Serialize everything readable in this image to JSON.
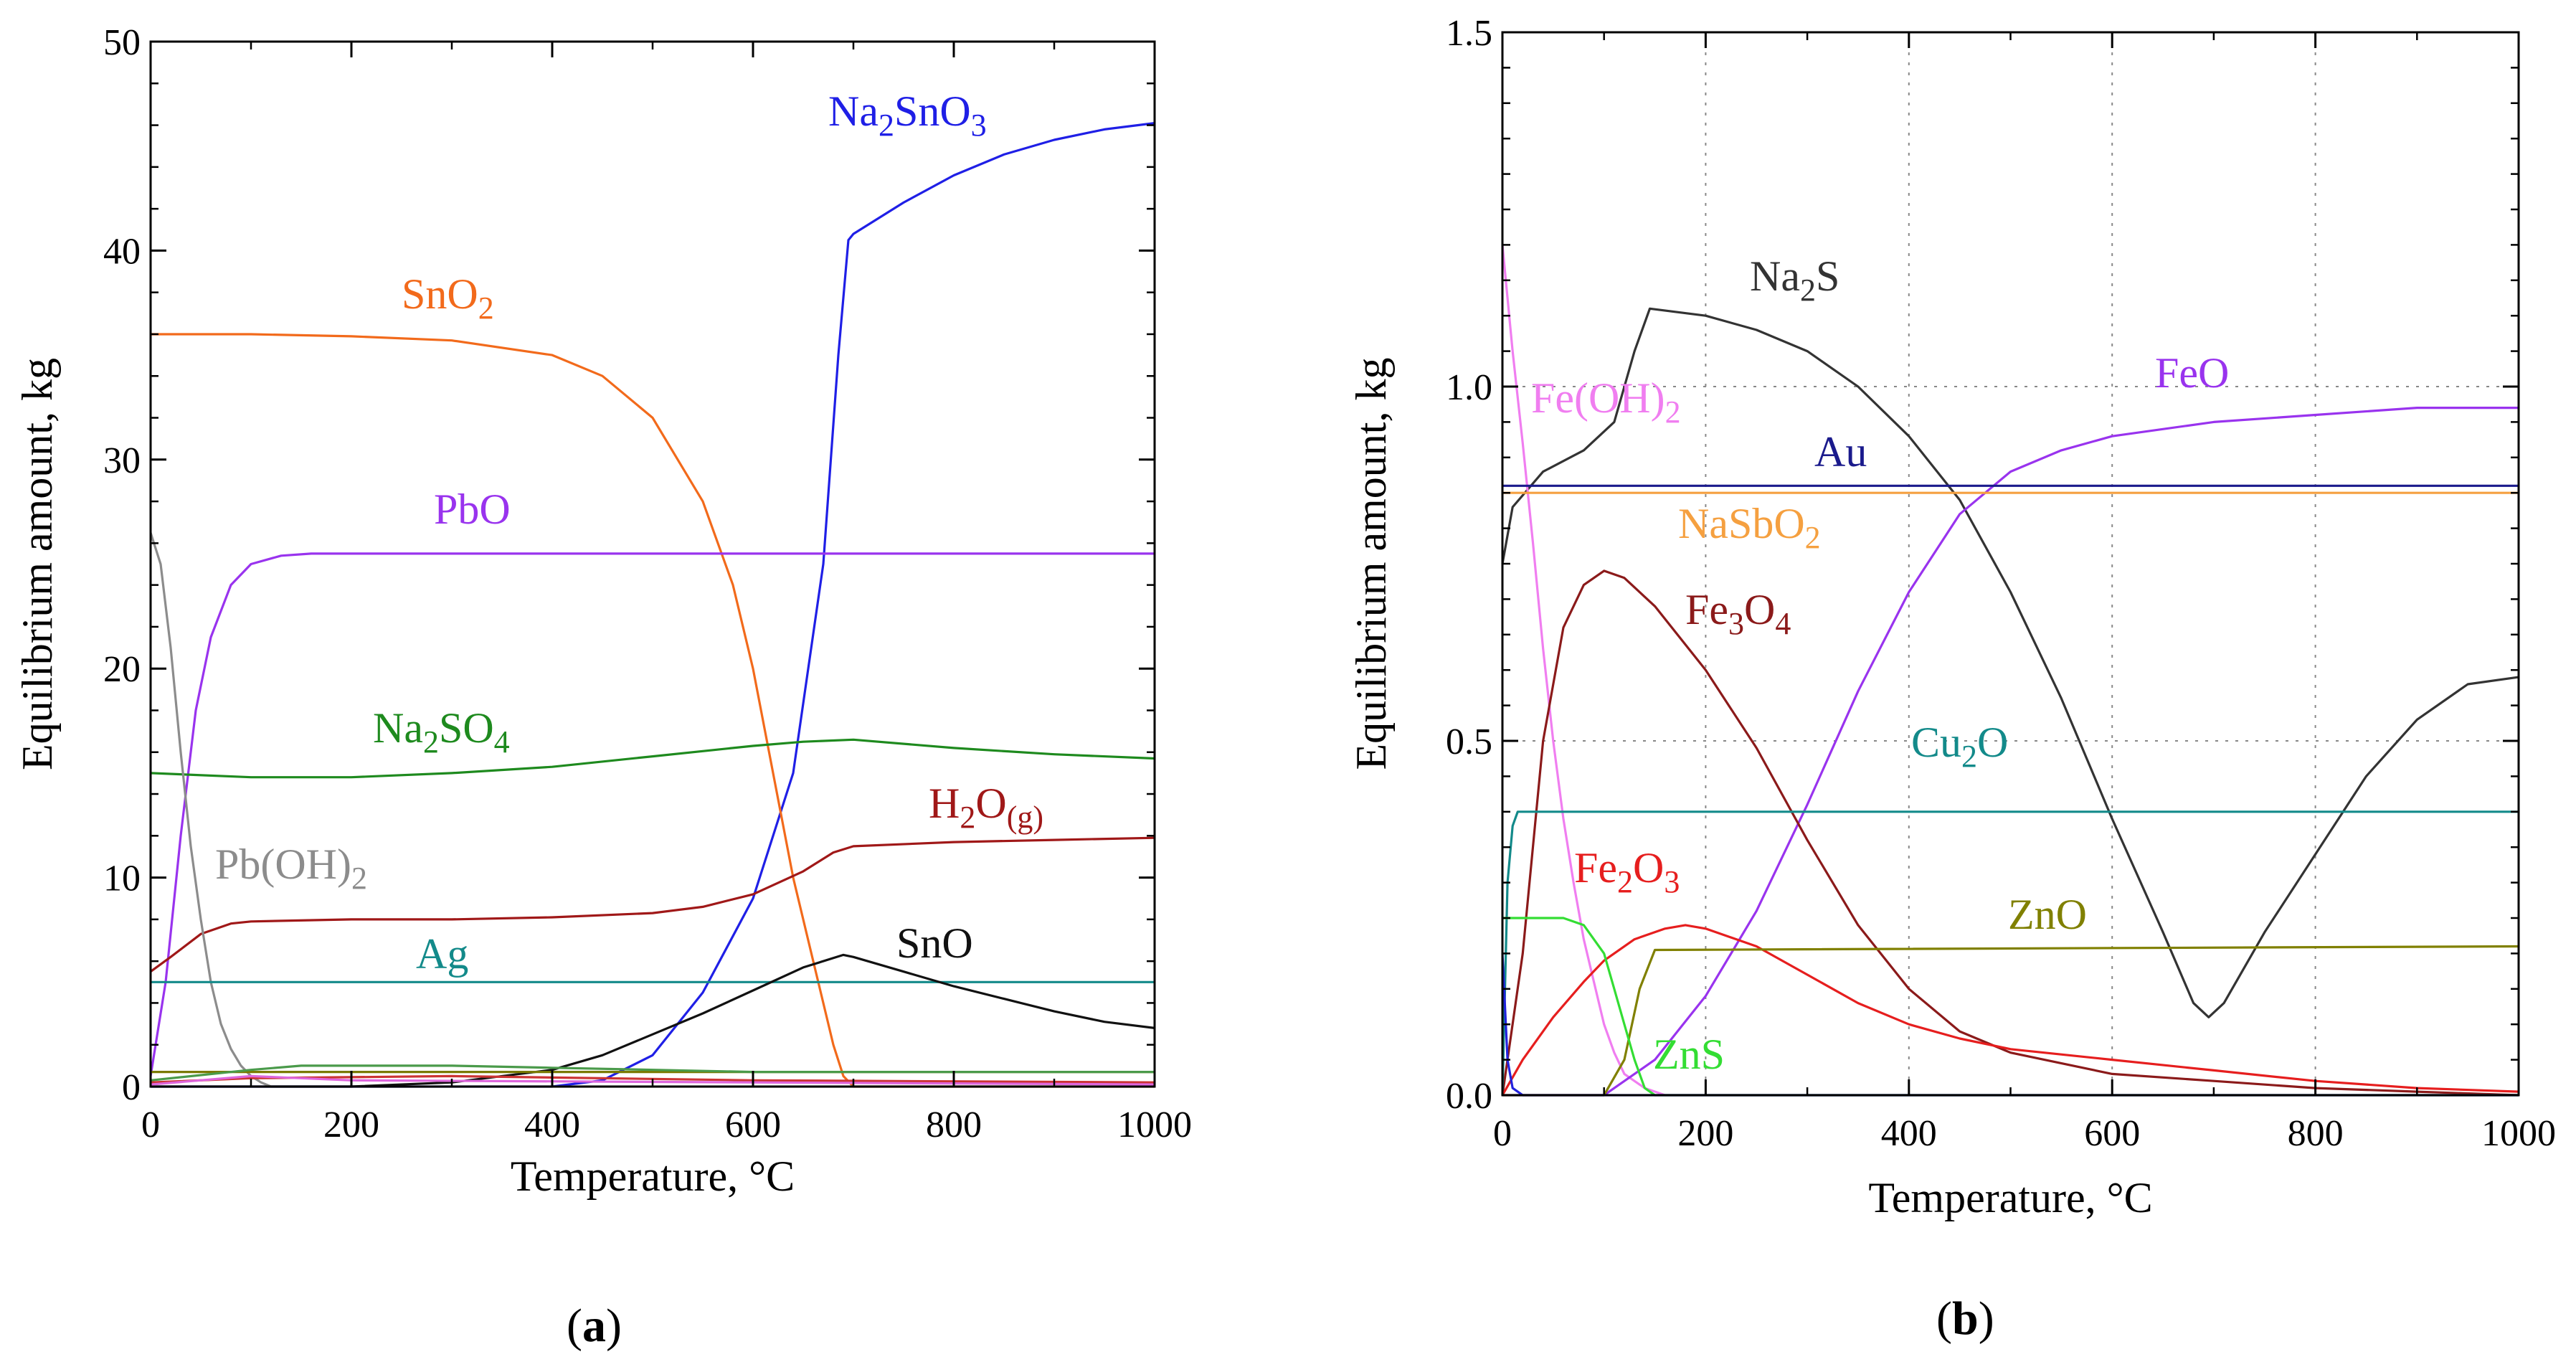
{
  "chart_data": [
    {
      "panel": "a",
      "type": "line",
      "caption": "(a)",
      "xlabel": "Temperature, °C",
      "ylabel": "Equilibrium amount, kg",
      "xlim": [
        0,
        1000
      ],
      "ylim": [
        0,
        50
      ],
      "xticks": [
        "0",
        "200",
        "400",
        "600",
        "800",
        "1000"
      ],
      "yticks": [
        "0",
        "10",
        "20",
        "30",
        "40",
        "50"
      ],
      "series": [
        {
          "name": "Na2SnO3",
          "label": {
            "base": "Na",
            "parts": [
              [
                "Na",
                ""
              ],
              [
                "2",
                "sub"
              ],
              [
                "SnO",
                ""
              ],
              [
                "3",
                "sub"
              ]
            ]
          },
          "color": "#1f1fe6",
          "x": [
            0,
            300,
            400,
            450,
            500,
            550,
            600,
            640,
            670,
            685,
            695,
            700,
            750,
            800,
            850,
            900,
            950,
            1000
          ],
          "y": [
            0,
            0,
            0,
            0.3,
            1.5,
            4.5,
            9,
            15,
            25,
            35,
            40.5,
            40.8,
            42.3,
            43.6,
            44.6,
            45.3,
            45.8,
            46.1
          ]
        },
        {
          "name": "SnO2",
          "label": {
            "parts": [
              [
                "SnO",
                ""
              ],
              [
                "2",
                "sub"
              ]
            ]
          },
          "color": "#f26a1b",
          "x": [
            0,
            100,
            200,
            300,
            400,
            450,
            500,
            550,
            580,
            600,
            620,
            640,
            660,
            680,
            690,
            700,
            1000
          ],
          "y": [
            36,
            36,
            35.9,
            35.7,
            35,
            34,
            32,
            28,
            24,
            20,
            15,
            10,
            6,
            2,
            0.5,
            0,
            0
          ]
        },
        {
          "name": "PbO",
          "label": {
            "parts": [
              [
                "PbO",
                ""
              ]
            ]
          },
          "color": "#9933ee",
          "x": [
            0,
            15,
            30,
            45,
            60,
            80,
            100,
            130,
            160,
            200,
            1000
          ],
          "y": [
            0.5,
            5,
            12,
            18,
            21.5,
            24,
            25,
            25.4,
            25.5,
            25.5,
            25.5
          ]
        },
        {
          "name": "Na2SO4",
          "label": {
            "parts": [
              [
                "Na",
                ""
              ],
              [
                "2",
                "sub"
              ],
              [
                "SO",
                ""
              ],
              [
                "4",
                "sub"
              ]
            ]
          },
          "color": "#1e8a1e",
          "x": [
            0,
            100,
            200,
            300,
            400,
            500,
            600,
            650,
            700,
            800,
            900,
            1000
          ],
          "y": [
            15,
            14.8,
            14.8,
            15,
            15.3,
            15.8,
            16.3,
            16.5,
            16.6,
            16.2,
            15.9,
            15.7
          ]
        },
        {
          "name": "H2O(g)",
          "label": {
            "parts": [
              [
                "H",
                ""
              ],
              [
                "2",
                "sub"
              ],
              [
                "O",
                ""
              ],
              [
                "(g)",
                "sub"
              ]
            ]
          },
          "color": "#a01818",
          "x": [
            0,
            20,
            50,
            80,
            100,
            200,
            300,
            400,
            500,
            550,
            600,
            650,
            680,
            700,
            800,
            900,
            1000
          ],
          "y": [
            5.5,
            6.2,
            7.3,
            7.8,
            7.9,
            8,
            8,
            8.1,
            8.3,
            8.6,
            9.2,
            10.3,
            11.2,
            11.5,
            11.7,
            11.8,
            11.9
          ]
        },
        {
          "name": "Pb(OH)2",
          "label": {
            "parts": [
              [
                "Pb(OH)",
                ""
              ],
              [
                "2",
                "sub"
              ]
            ]
          },
          "color": "#8c8c8c",
          "x": [
            0,
            10,
            20,
            30,
            40,
            50,
            60,
            70,
            80,
            90,
            100,
            110,
            120,
            1000
          ],
          "y": [
            26.5,
            25,
            21,
            16,
            11.5,
            8,
            5,
            3,
            1.8,
            1,
            0.5,
            0.2,
            0,
            0
          ]
        },
        {
          "name": "Ag",
          "label": {
            "parts": [
              [
                "Ag",
                ""
              ]
            ]
          },
          "color": "#138a8a",
          "x": [
            0,
            1000
          ],
          "y": [
            5,
            5
          ]
        },
        {
          "name": "SnO",
          "label": {
            "parts": [
              [
                "SnO",
                ""
              ]
            ]
          },
          "color": "#111111",
          "x": [
            0,
            200,
            300,
            400,
            450,
            500,
            550,
            600,
            650,
            690,
            700,
            750,
            800,
            850,
            900,
            950,
            1000
          ],
          "y": [
            0,
            0,
            0.2,
            0.8,
            1.5,
            2.5,
            3.5,
            4.6,
            5.7,
            6.3,
            6.2,
            5.5,
            4.8,
            4.2,
            3.6,
            3.1,
            2.8
          ]
        },
        {
          "name": "minor-1",
          "color": "#7a7a00",
          "x": [
            0,
            1000
          ],
          "y": [
            0.7,
            0.7
          ]
        },
        {
          "name": "minor-2",
          "color": "#4a9a4a",
          "x": [
            0,
            100,
            150,
            300,
            400,
            600,
            1000
          ],
          "y": [
            0.3,
            0.8,
            1.0,
            1.0,
            0.9,
            0.7,
            0.7
          ]
        },
        {
          "name": "minor-3",
          "color": "#cc3333",
          "x": [
            0,
            100,
            300,
            600,
            1000
          ],
          "y": [
            0.2,
            0.4,
            0.5,
            0.3,
            0.2
          ]
        },
        {
          "name": "minor-4",
          "color": "#dd66dd",
          "x": [
            0,
            100,
            200,
            1000
          ],
          "y": [
            0.1,
            0.5,
            0.3,
            0.1
          ]
        }
      ]
    },
    {
      "panel": "b",
      "type": "line",
      "caption": "(b)",
      "xlabel": "Temperature, °C",
      "ylabel": "Equilibrium amount, kg",
      "xlim": [
        0,
        1000
      ],
      "ylim": [
        0,
        1.5
      ],
      "xticks": [
        "0",
        "200",
        "400",
        "600",
        "800",
        "1000"
      ],
      "yticks": [
        "0.0",
        "0.5",
        "1.0",
        "1.5"
      ],
      "grid": true,
      "series": [
        {
          "name": "Na2S",
          "label": {
            "parts": [
              [
                "Na",
                ""
              ],
              [
                "2",
                "sub"
              ],
              [
                "S",
                ""
              ]
            ]
          },
          "color": "#333333",
          "x": [
            0,
            10,
            40,
            80,
            110,
            130,
            145,
            200,
            250,
            300,
            350,
            400,
            450,
            500,
            550,
            600,
            650,
            680,
            695,
            710,
            750,
            800,
            850,
            900,
            950,
            1000
          ],
          "y": [
            0.75,
            0.83,
            0.88,
            0.91,
            0.95,
            1.05,
            1.11,
            1.1,
            1.08,
            1.05,
            1.0,
            0.93,
            0.84,
            0.71,
            0.56,
            0.39,
            0.23,
            0.13,
            0.11,
            0.13,
            0.23,
            0.34,
            0.45,
            0.53,
            0.58,
            0.59
          ]
        },
        {
          "name": "Fe(OH)2",
          "label": {
            "parts": [
              [
                "Fe(OH)",
                ""
              ],
              [
                "2",
                "sub"
              ]
            ]
          },
          "color": "#f07ef0",
          "x": [
            0,
            10,
            20,
            30,
            40,
            50,
            60,
            70,
            80,
            90,
            100,
            110,
            120,
            140,
            160,
            1000
          ],
          "y": [
            1.2,
            1.05,
            0.92,
            0.78,
            0.63,
            0.5,
            0.39,
            0.3,
            0.22,
            0.16,
            0.1,
            0.06,
            0.03,
            0.01,
            0,
            0
          ]
        },
        {
          "name": "FeO",
          "label": {
            "parts": [
              [
                "FeO",
                ""
              ]
            ]
          },
          "color": "#9933ee",
          "x": [
            0,
            100,
            150,
            200,
            250,
            300,
            350,
            400,
            450,
            500,
            550,
            600,
            700,
            800,
            900,
            1000
          ],
          "y": [
            0,
            0,
            0.05,
            0.14,
            0.26,
            0.41,
            0.57,
            0.71,
            0.82,
            0.88,
            0.91,
            0.93,
            0.95,
            0.96,
            0.97,
            0.97
          ]
        },
        {
          "name": "Au",
          "label": {
            "parts": [
              [
                "Au",
                ""
              ]
            ]
          },
          "color": "#1a1a8c",
          "x": [
            0,
            1000
          ],
          "y": [
            0.86,
            0.86
          ]
        },
        {
          "name": "NaSbO2",
          "label": {
            "parts": [
              [
                "NaSbO",
                ""
              ],
              [
                "2",
                "sub"
              ]
            ]
          },
          "color": "#f5a040",
          "x": [
            0,
            1000
          ],
          "y": [
            0.85,
            0.85
          ]
        },
        {
          "name": "Fe3O4",
          "label": {
            "parts": [
              [
                "Fe",
                ""
              ],
              [
                "3",
                "sub"
              ],
              [
                "O",
                ""
              ],
              [
                "4",
                "sub"
              ]
            ]
          },
          "color": "#8b1a1a",
          "x": [
            0,
            20,
            40,
            60,
            80,
            100,
            120,
            150,
            200,
            250,
            300,
            350,
            400,
            450,
            500,
            600,
            700,
            800,
            900,
            1000
          ],
          "y": [
            0,
            0.2,
            0.5,
            0.66,
            0.72,
            0.74,
            0.73,
            0.69,
            0.6,
            0.49,
            0.36,
            0.24,
            0.15,
            0.09,
            0.06,
            0.03,
            0.02,
            0.01,
            0.005,
            0
          ]
        },
        {
          "name": "Cu2O",
          "label": {
            "parts": [
              [
                "Cu",
                ""
              ],
              [
                "2",
                "sub"
              ],
              [
                "O",
                ""
              ]
            ]
          },
          "color": "#138a8a",
          "x": [
            0,
            5,
            10,
            15,
            1000
          ],
          "y": [
            0,
            0.3,
            0.38,
            0.4,
            0.4
          ]
        },
        {
          "name": "Fe2O3",
          "label": {
            "parts": [
              [
                "Fe",
                ""
              ],
              [
                "2",
                "sub"
              ],
              [
                "O",
                ""
              ],
              [
                "3",
                "sub"
              ]
            ]
          },
          "color": "#e61e1e",
          "x": [
            0,
            20,
            50,
            80,
            100,
            130,
            160,
            180,
            200,
            250,
            300,
            350,
            400,
            450,
            500,
            600,
            700,
            800,
            900,
            1000
          ],
          "y": [
            0,
            0.05,
            0.11,
            0.16,
            0.19,
            0.22,
            0.235,
            0.24,
            0.235,
            0.21,
            0.17,
            0.13,
            0.1,
            0.08,
            0.065,
            0.05,
            0.035,
            0.02,
            0.01,
            0.005
          ]
        },
        {
          "name": "ZnO",
          "label": {
            "parts": [
              [
                "ZnO",
                ""
              ]
            ]
          },
          "color": "#808000",
          "x": [
            0,
            100,
            120,
            135,
            150,
            1000
          ],
          "y": [
            0,
            0,
            0.05,
            0.15,
            0.205,
            0.21
          ]
        },
        {
          "name": "ZnS",
          "label": {
            "parts": [
              [
                "ZnS",
                ""
              ]
            ]
          },
          "color": "#33dd33",
          "x": [
            0,
            5,
            10,
            60,
            80,
            100,
            110,
            120,
            130,
            140,
            150,
            1000
          ],
          "y": [
            0.25,
            0.25,
            0.25,
            0.25,
            0.24,
            0.2,
            0.15,
            0.1,
            0.05,
            0.01,
            0,
            0
          ]
        },
        {
          "name": "minor-blue",
          "color": "#2222dd",
          "x": [
            0,
            5,
            10,
            20,
            1000
          ],
          "y": [
            0.2,
            0.05,
            0.01,
            0,
            0
          ]
        }
      ]
    }
  ]
}
